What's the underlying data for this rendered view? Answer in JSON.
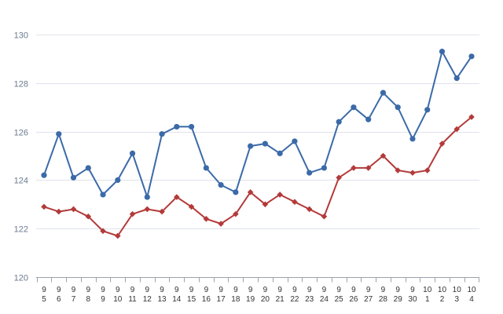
{
  "chart_data": {
    "type": "line",
    "title": "",
    "xlabel": "",
    "ylabel": "",
    "ylim": [
      120,
      130
    ],
    "yticks": [
      120,
      122,
      124,
      126,
      128,
      130
    ],
    "grid": "horizontal",
    "legend": "none",
    "categories": [
      [
        "9",
        "5"
      ],
      [
        "9",
        "6"
      ],
      [
        "9",
        "7"
      ],
      [
        "9",
        "8"
      ],
      [
        "9",
        "9"
      ],
      [
        "9",
        "10"
      ],
      [
        "9",
        "11"
      ],
      [
        "9",
        "12"
      ],
      [
        "9",
        "13"
      ],
      [
        "9",
        "14"
      ],
      [
        "9",
        "15"
      ],
      [
        "9",
        "16"
      ],
      [
        "9",
        "17"
      ],
      [
        "9",
        "18"
      ],
      [
        "9",
        "19"
      ],
      [
        "9",
        "20"
      ],
      [
        "9",
        "21"
      ],
      [
        "9",
        "22"
      ],
      [
        "9",
        "23"
      ],
      [
        "9",
        "24"
      ],
      [
        "9",
        "25"
      ],
      [
        "9",
        "26"
      ],
      [
        "9",
        "27"
      ],
      [
        "9",
        "28"
      ],
      [
        "9",
        "29"
      ],
      [
        "9",
        "30"
      ],
      [
        "10",
        "1"
      ],
      [
        "10",
        "2"
      ],
      [
        "10",
        "3"
      ],
      [
        "10",
        "4"
      ]
    ],
    "series": [
      {
        "color": "#3b6aa8",
        "marker": "circle",
        "values": [
          124.2,
          125.9,
          124.1,
          124.5,
          123.4,
          124.0,
          125.1,
          123.3,
          125.9,
          126.2,
          126.2,
          124.5,
          123.8,
          123.5,
          125.4,
          125.5,
          125.1,
          125.6,
          124.3,
          124.5,
          126.4,
          127.0,
          126.5,
          127.6,
          127.0,
          125.7,
          126.9,
          129.3,
          128.2,
          129.1
        ]
      },
      {
        "color": "#b33a3a",
        "marker": "diamond",
        "values": [
          122.9,
          122.7,
          122.8,
          122.5,
          121.9,
          121.7,
          122.6,
          122.8,
          122.7,
          123.3,
          122.9,
          122.4,
          122.2,
          122.6,
          123.5,
          123.0,
          123.4,
          123.1,
          122.8,
          122.5,
          124.1,
          124.5,
          124.5,
          125.0,
          124.4,
          124.3,
          124.4,
          125.5,
          126.1,
          126.6
        ]
      }
    ],
    "colors": {
      "grid": "#dfe3ea",
      "axis": "#9aa3ad",
      "ytick_text": "#6b7a90",
      "xtick_text": "#333333"
    }
  }
}
